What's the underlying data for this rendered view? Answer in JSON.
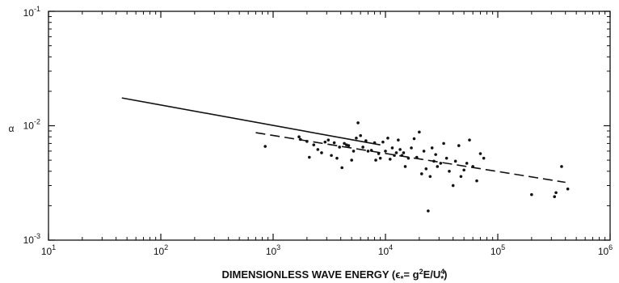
{
  "chart_data": {
    "type": "scatter",
    "x_scale": "log",
    "y_scale": "log",
    "xlim": [
      10,
      1000000
    ],
    "ylim": [
      0.001,
      0.1
    ],
    "x_ticks": [
      {
        "value": 10,
        "base": "10",
        "exp": "1"
      },
      {
        "value": 100,
        "base": "10",
        "exp": "2"
      },
      {
        "value": 1000,
        "base": "10",
        "exp": "3"
      },
      {
        "value": 10000,
        "base": "10",
        "exp": "4"
      },
      {
        "value": 100000,
        "base": "10",
        "exp": "5"
      },
      {
        "value": 1000000,
        "base": "10",
        "exp": "6"
      }
    ],
    "y_ticks": [
      {
        "value": 0.001,
        "base": "10",
        "exp": "-3"
      },
      {
        "value": 0.01,
        "base": "10",
        "exp": "-2"
      },
      {
        "value": 0.1,
        "base": "10",
        "exp": "-1"
      }
    ],
    "xlabel": {
      "prefix": "DIMENSIONLESS WAVE ENERGY  (",
      "eps": "ϵ",
      "eps_sub": "*",
      "eq": "= g",
      "g_exp": "2",
      "e_mid": "E/U",
      "u_exp": "4",
      "u_sub": "*",
      "suffix": ")"
    },
    "ylabel": "α",
    "grid": false,
    "series": [
      {
        "style": "solid-line",
        "x": [
          45,
          9000
        ],
        "y": [
          0.0175,
          0.0068
        ]
      },
      {
        "style": "dashed-line",
        "x": [
          700,
          400000
        ],
        "y": [
          0.0087,
          0.0032
        ]
      },
      {
        "style": "points",
        "x": [
          850,
          1700,
          1750,
          2000,
          2100,
          2300,
          2500,
          2700,
          2900,
          3100,
          3300,
          3500,
          3700,
          3900,
          4100,
          4300,
          4500,
          4700,
          5000,
          5200,
          5500,
          5700,
          6000,
          6300,
          6700,
          7000,
          7500,
          8000,
          8200,
          8700,
          9000,
          9500,
          10000,
          10500,
          11000,
          11500,
          12000,
          12500,
          13000,
          13500,
          14000,
          14500,
          15000,
          16000,
          17000,
          18000,
          19000,
          20000,
          21000,
          22000,
          23000,
          24000,
          25000,
          26000,
          27000,
          28000,
          29000,
          31000,
          33000,
          35000,
          37000,
          40000,
          42000,
          45000,
          47000,
          50000,
          53000,
          56000,
          60000,
          65000,
          70000,
          75000,
          200000,
          320000,
          330000,
          370000,
          420000
        ],
        "y": [
          0.0066,
          0.008,
          0.0076,
          0.0073,
          0.0053,
          0.0068,
          0.0062,
          0.0058,
          0.0072,
          0.0075,
          0.0055,
          0.0071,
          0.0052,
          0.0065,
          0.0043,
          0.007,
          0.0068,
          0.0067,
          0.005,
          0.006,
          0.0078,
          0.0106,
          0.0082,
          0.0065,
          0.0074,
          0.006,
          0.0061,
          0.0071,
          0.005,
          0.0057,
          0.0052,
          0.0072,
          0.006,
          0.0078,
          0.0051,
          0.0064,
          0.0055,
          0.0058,
          0.0075,
          0.0062,
          0.0055,
          0.0058,
          0.0044,
          0.0052,
          0.0064,
          0.0077,
          0.0053,
          0.0088,
          0.0038,
          0.006,
          0.0042,
          0.0018,
          0.0036,
          0.0064,
          0.0049,
          0.0056,
          0.0044,
          0.0047,
          0.007,
          0.0052,
          0.004,
          0.003,
          0.0049,
          0.0067,
          0.0036,
          0.0041,
          0.0047,
          0.0075,
          0.0044,
          0.0033,
          0.0057,
          0.0052,
          0.0025,
          0.0024,
          0.0026,
          0.0044,
          0.0028
        ]
      }
    ]
  }
}
